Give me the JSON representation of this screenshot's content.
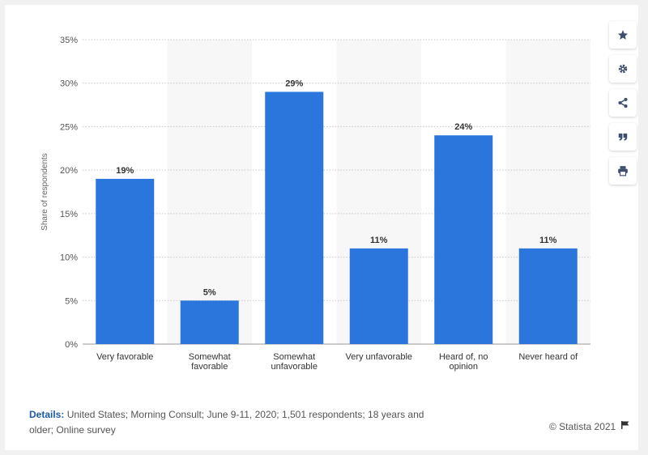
{
  "chart_data": {
    "type": "bar",
    "categories": [
      [
        "Very favorable"
      ],
      [
        "Somewhat",
        "favorable"
      ],
      [
        "Somewhat",
        "unfavorable"
      ],
      [
        "Very unfavorable"
      ],
      [
        "Heard of, no",
        "opinion"
      ],
      [
        "Never heard of"
      ]
    ],
    "values": [
      19,
      5,
      29,
      11,
      24,
      11
    ],
    "value_labels": [
      "19%",
      "5%",
      "29%",
      "11%",
      "24%",
      "11%"
    ],
    "ylabel": "Share of respondents",
    "ylim": [
      0,
      35
    ],
    "yticks": [
      0,
      5,
      10,
      15,
      20,
      25,
      30,
      35
    ],
    "ytick_labels": [
      "0%",
      "5%",
      "10%",
      "15%",
      "20%",
      "25%",
      "30%",
      "35%"
    ],
    "bar_color": "#2a76dd",
    "grid": true
  },
  "footer": {
    "details_label": "Details:",
    "details_text": " United States; Morning Consult; June 9-11, 2020; 1,501 respondents; 18 years and older; Online survey",
    "copyright": "© Statista 2021"
  },
  "toolbar": {
    "icons": [
      "star-icon",
      "gear-icon",
      "share-icon",
      "quote-icon",
      "print-icon"
    ]
  }
}
